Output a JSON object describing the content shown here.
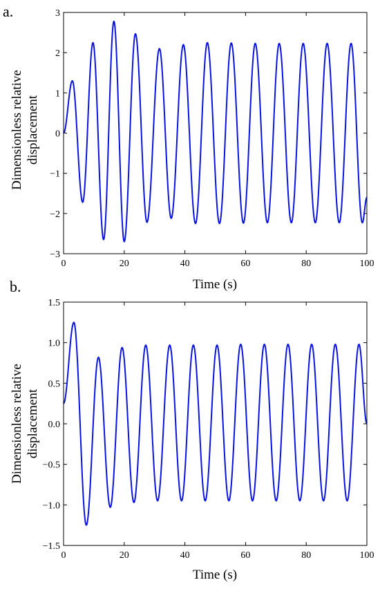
{
  "chart_data": [
    {
      "type": "line",
      "panel_label": "a.",
      "xlabel": "Time (s)",
      "ylabel_lines": [
        "Dimensionless relative",
        "displacement"
      ],
      "xlim": [
        0,
        100
      ],
      "ylim": [
        -3,
        3
      ],
      "x_ticks": [
        0,
        20,
        40,
        60,
        80,
        100
      ],
      "x_tick_labels": [
        "0",
        "20",
        "40",
        "60",
        "80",
        "100"
      ],
      "y_ticks": [
        -3,
        -2,
        -1,
        0,
        1,
        2,
        3
      ],
      "y_tick_labels": [
        "−3",
        "−2",
        "−1",
        "0",
        "1",
        "2",
        "3"
      ],
      "grid": false,
      "color": "#0a14e0",
      "series": [
        {
          "x": [
            0,
            2.9,
            6.3,
            9.7,
            13.2,
            16.6,
            20.0,
            23.7,
            27.5,
            31.6,
            35.5,
            39.5,
            43.5,
            47.4,
            51.4,
            55.3,
            59.3,
            63.2,
            67.2,
            71.1,
            75.1,
            79.0,
            83.0,
            86.9,
            90.9,
            94.8,
            98.5,
            100
          ],
          "y": [
            0,
            1.3,
            -1.72,
            2.25,
            -2.65,
            2.78,
            -2.7,
            2.47,
            -2.22,
            2.1,
            -2.12,
            2.2,
            -2.25,
            2.25,
            -2.25,
            2.24,
            -2.24,
            2.23,
            -2.23,
            2.23,
            -2.23,
            2.23,
            -2.23,
            2.23,
            -2.23,
            2.23,
            -2.23,
            -1.6
          ]
        }
      ]
    },
    {
      "type": "line",
      "panel_label": "b.",
      "xlabel": "Time (s)",
      "ylabel_lines": [
        "Dimensionless relative",
        "displacement"
      ],
      "xlim": [
        0,
        100
      ],
      "ylim": [
        -1.5,
        1.5
      ],
      "x_ticks": [
        0,
        20,
        40,
        60,
        80,
        100
      ],
      "x_tick_labels": [
        "0",
        "20",
        "40",
        "60",
        "80",
        "100"
      ],
      "y_ticks": [
        -1.5,
        -1.0,
        -0.5,
        0.0,
        0.5,
        1.0,
        1.5
      ],
      "y_tick_labels": [
        "−1.5",
        "−1.0",
        "−0.5",
        "0.0",
        "0.5",
        "1.0",
        "1.5"
      ],
      "grid": false,
      "color": "#0a14e0",
      "series": [
        {
          "x": [
            0,
            3.4,
            7.5,
            11.5,
            15.4,
            19.3,
            23.2,
            27.1,
            31.0,
            35.0,
            38.9,
            42.8,
            46.7,
            50.6,
            54.5,
            58.4,
            62.3,
            66.2,
            70.1,
            74.0,
            77.9,
            81.8,
            85.7,
            89.6,
            93.5,
            97.4,
            100
          ],
          "y": [
            0.25,
            1.25,
            -1.25,
            0.82,
            -1.03,
            0.94,
            -0.97,
            0.97,
            -0.95,
            0.97,
            -0.95,
            0.97,
            -0.95,
            0.97,
            -0.95,
            0.98,
            -0.95,
            0.98,
            -0.95,
            0.98,
            -0.95,
            0.98,
            -0.95,
            0.98,
            -0.95,
            0.98,
            0.0
          ]
        }
      ]
    }
  ]
}
